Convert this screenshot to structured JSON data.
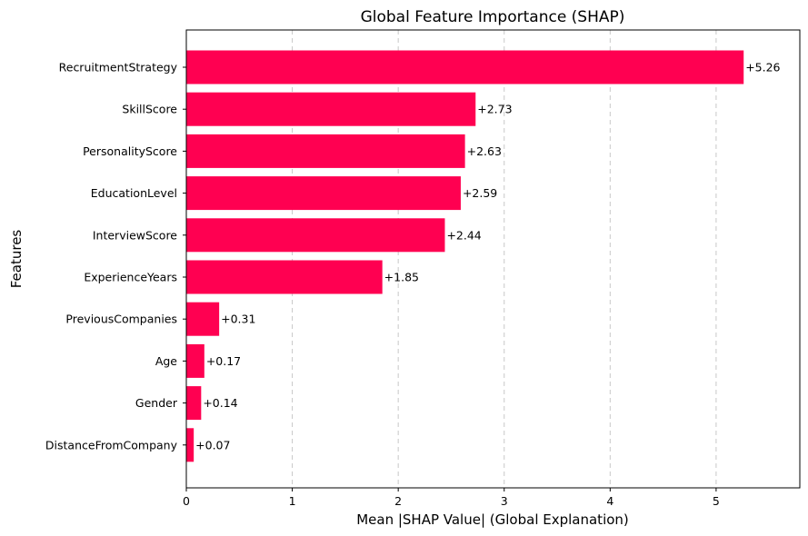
{
  "chart_data": {
    "type": "bar",
    "orientation": "horizontal",
    "title": "Global Feature Importance (SHAP)",
    "xlabel": "Mean |SHAP Value| (Global Explanation)",
    "ylabel": "Features",
    "xlim": [
      0,
      5.79
    ],
    "xticks": [
      0,
      1,
      2,
      3,
      4,
      5
    ],
    "xtick_labels": [
      "0",
      "1",
      "2",
      "3",
      "4",
      "5"
    ],
    "grid": {
      "x": true,
      "y": false,
      "style": "dashed"
    },
    "bar_color": "#FF0051",
    "categories": [
      "RecruitmentStrategy",
      "SkillScore",
      "PersonalityScore",
      "EducationLevel",
      "InterviewScore",
      "ExperienceYears",
      "PreviousCompanies",
      "Age",
      "Gender",
      "DistanceFromCompany"
    ],
    "values": [
      5.26,
      2.73,
      2.63,
      2.59,
      2.44,
      1.85,
      0.31,
      0.17,
      0.14,
      0.07
    ],
    "data_labels": [
      "+5.26",
      "+2.73",
      "+2.63",
      "+2.59",
      "+2.44",
      "+1.85",
      "+0.31",
      "+0.17",
      "+0.14",
      "+0.07"
    ]
  }
}
